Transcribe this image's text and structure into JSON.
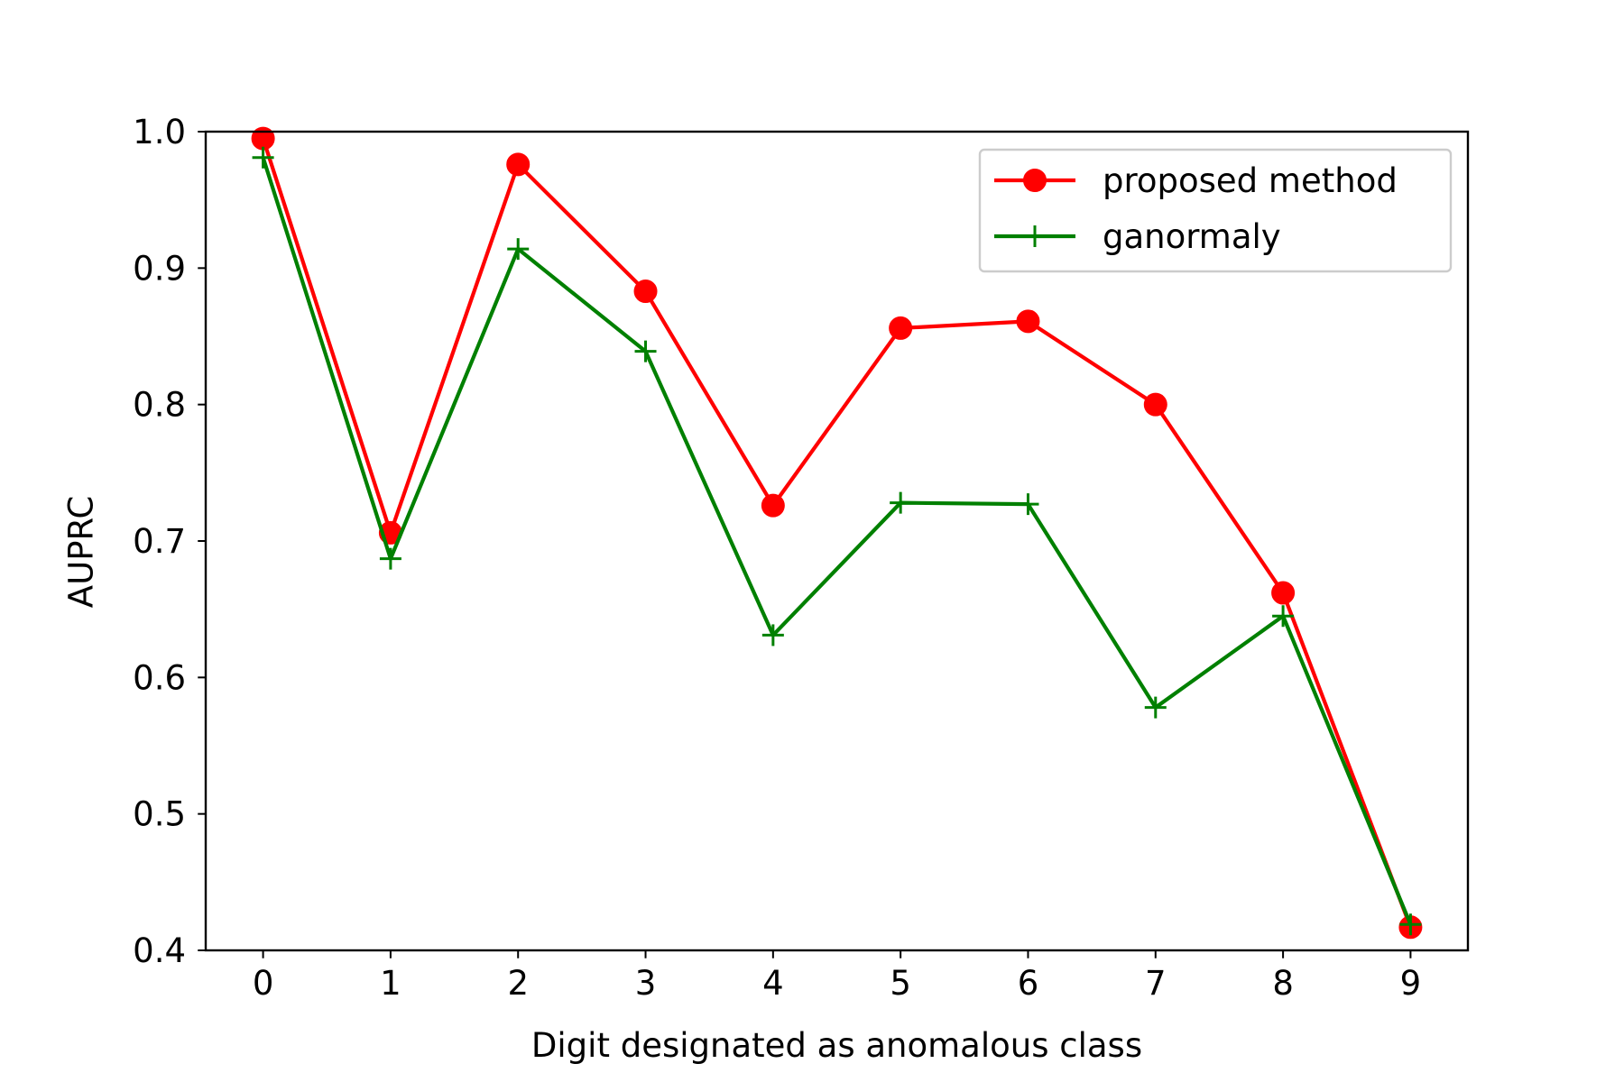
{
  "chart_data": {
    "type": "line",
    "title": "",
    "xlabel": "Digit designated as anomalous class",
    "ylabel": "AUPRC",
    "x": [
      0,
      1,
      2,
      3,
      4,
      5,
      6,
      7,
      8,
      9
    ],
    "x_ticks": [
      "0",
      "1",
      "2",
      "3",
      "4",
      "5",
      "6",
      "7",
      "8",
      "9"
    ],
    "xlim": [
      -0.45,
      9.45
    ],
    "ylim": [
      0.4,
      1.0
    ],
    "y_ticks": [
      "0.4",
      "0.5",
      "0.6",
      "0.7",
      "0.8",
      "0.9",
      "1.0"
    ],
    "grid": false,
    "legend_position": "upper right",
    "series": [
      {
        "name": "proposed method",
        "color": "#ff0000",
        "marker": "circle",
        "values": [
          0.995,
          0.706,
          0.976,
          0.883,
          0.726,
          0.856,
          0.861,
          0.8,
          0.662,
          0.417
        ]
      },
      {
        "name": "ganormaly",
        "color": "#008000",
        "marker": "plus",
        "values": [
          0.981,
          0.687,
          0.914,
          0.839,
          0.631,
          0.728,
          0.727,
          0.578,
          0.645,
          0.419
        ]
      }
    ]
  }
}
